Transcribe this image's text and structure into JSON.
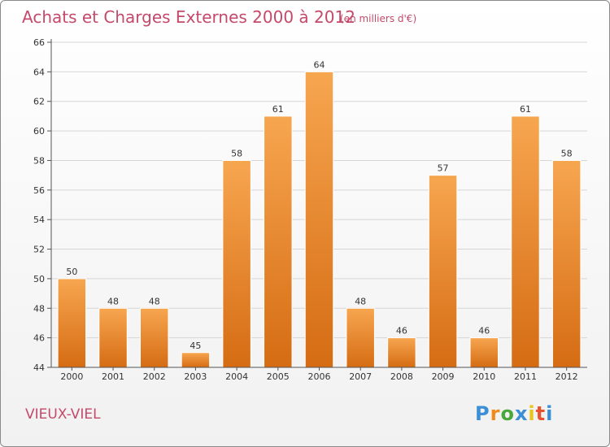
{
  "chart_data": {
    "type": "bar",
    "title": "Achats et Charges Externes 2000 à 2012",
    "subtitle": "(en milliers d'€)",
    "categories": [
      "2000",
      "2001",
      "2002",
      "2003",
      "2004",
      "2005",
      "2006",
      "2007",
      "2008",
      "2009",
      "2010",
      "2011",
      "2012"
    ],
    "values": [
      50,
      48,
      48,
      45,
      58,
      61,
      64,
      48,
      46,
      57,
      46,
      61,
      58
    ],
    "ylim": [
      44,
      66
    ],
    "yticks": [
      "44",
      "46",
      "48",
      "50",
      "52",
      "54",
      "56",
      "58",
      "60",
      "62",
      "64",
      "66"
    ],
    "grid": true,
    "bar_color_top": "#f7a650",
    "bar_color_bottom": "#d56c13"
  },
  "place_name": "VIEUX-VIEL",
  "logo": {
    "letters": [
      "P",
      "r",
      "o",
      "x",
      "i",
      "t",
      "i"
    ],
    "colors": [
      "#3a8fd6",
      "#f08a1c",
      "#4aa83a",
      "#3a8fd6",
      "#e8c51a",
      "#e8532e",
      "#3a8fd6"
    ]
  }
}
